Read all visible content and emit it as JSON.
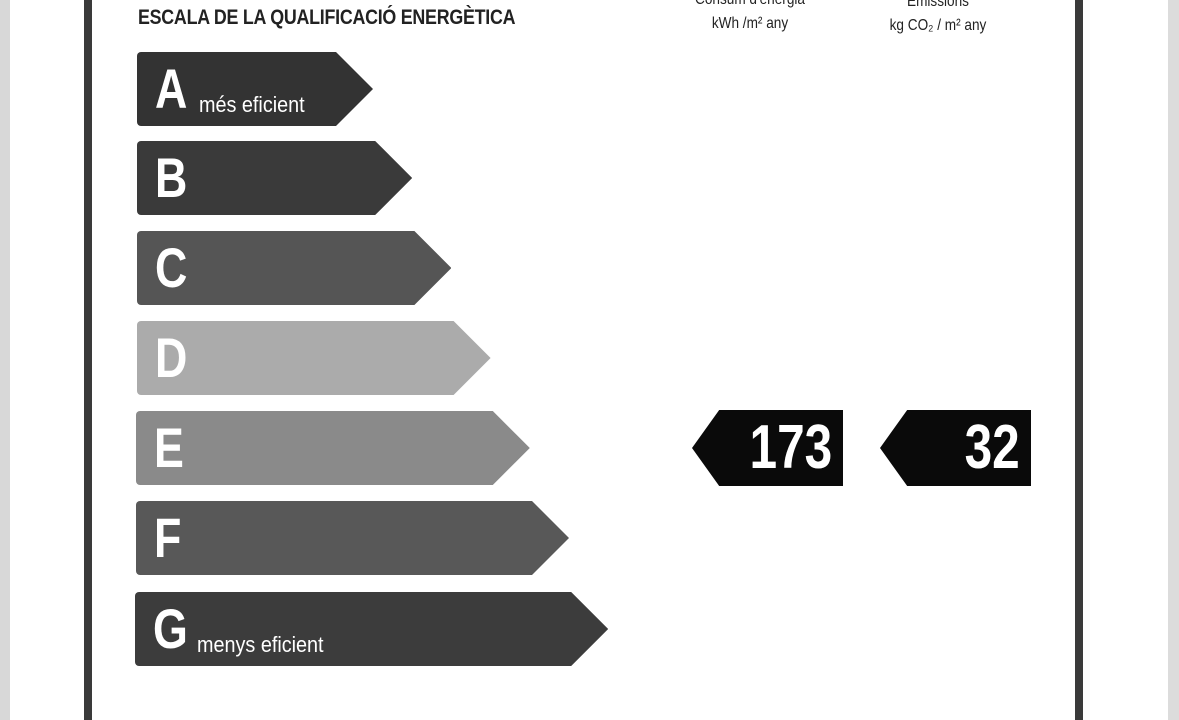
{
  "title": "ESCALA DE LA QUALIFICACIÓ ENERGÈTICA",
  "columns": [
    {
      "label": "Consum d'energia",
      "unit": "kWh /m² any"
    },
    {
      "label": "Emissions",
      "unit": "kg CO₂ / m² any"
    }
  ],
  "scale": [
    {
      "letter": "A",
      "sub": "més eficient",
      "color": "#333333"
    },
    {
      "letter": "B",
      "sub": "",
      "color": "#3a3a3a"
    },
    {
      "letter": "C",
      "sub": "",
      "color": "#555555"
    },
    {
      "letter": "D",
      "sub": "",
      "color": "#ababab"
    },
    {
      "letter": "E",
      "sub": "",
      "color": "#8a8a8a"
    },
    {
      "letter": "F",
      "sub": "",
      "color": "#585858"
    },
    {
      "letter": "G",
      "sub": "menys eficient",
      "color": "#3c3c3c"
    }
  ],
  "rating": {
    "letter": "E",
    "energy": "173",
    "emissions": "32"
  }
}
